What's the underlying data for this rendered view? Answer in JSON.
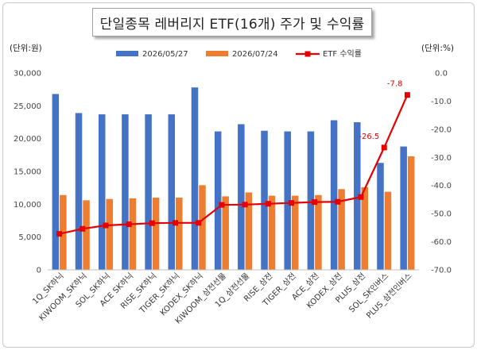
{
  "chart_data": {
    "type": "bar+line",
    "title": "단일종목 레버리지 ETF(16개) 주가 및 수익률",
    "left_unit": "(단위:원)",
    "right_unit": "(단위:%)",
    "categories": [
      "1Q_SK하닉",
      "KIWOOM_SK하닉",
      "SOL_SK하닉",
      "ACE SK하닉",
      "RISE_SK하닉",
      "TIGER_SK하닉",
      "KODEX_SK하닉",
      "KIWOOM_삼전선물",
      "1Q_삼전선물",
      "RISE_삼전",
      "TIGER_삼전",
      "ACE_삼전",
      "KODEX_삼전",
      "PLUS_삼전",
      "SOL_SK인버스",
      "PLUS_삼전인버스"
    ],
    "series": [
      {
        "name": "2026/05/27",
        "type": "bar",
        "axis": "left",
        "color": "#4472c4",
        "values": [
          26800,
          23900,
          23700,
          23700,
          23700,
          23700,
          27800,
          21100,
          22200,
          21200,
          21100,
          21100,
          22800,
          22500,
          16300,
          18800
        ]
      },
      {
        "name": "2026/07/24",
        "type": "bar",
        "axis": "left",
        "color": "#ed7d31",
        "values": [
          11400,
          10600,
          10800,
          10900,
          11000,
          11000,
          12900,
          11200,
          11800,
          11300,
          11300,
          11400,
          12300,
          12600,
          11900,
          17300
        ]
      },
      {
        "name": "ETF 수익률",
        "type": "line",
        "axis": "right",
        "color": "#e60000",
        "values": [
          -57.2,
          -55.4,
          -54.2,
          -53.8,
          -53.4,
          -53.3,
          -53.3,
          -46.9,
          -46.8,
          -46.5,
          -46.2,
          -45.9,
          -45.8,
          -44.1,
          -26.5,
          -7.8
        ]
      }
    ],
    "data_labels": [
      {
        "series": 2,
        "index": 14,
        "text": "-26.5"
      },
      {
        "series": 2,
        "index": 15,
        "text": "-7.8"
      }
    ],
    "left_axis": {
      "min": 0,
      "max": 30000,
      "step": 5000,
      "ticks": [
        "0",
        "5,000",
        "10,000",
        "15,000",
        "20,000",
        "25,000",
        "30,000"
      ]
    },
    "right_axis": {
      "min": -70,
      "max": 0,
      "step": 10,
      "ticks": [
        "0.0",
        "-10.0",
        "-20.0",
        "-30.0",
        "-40.0",
        "-50.0",
        "-60.0",
        "-70.0"
      ]
    },
    "grid": false,
    "legend_position": "top"
  }
}
